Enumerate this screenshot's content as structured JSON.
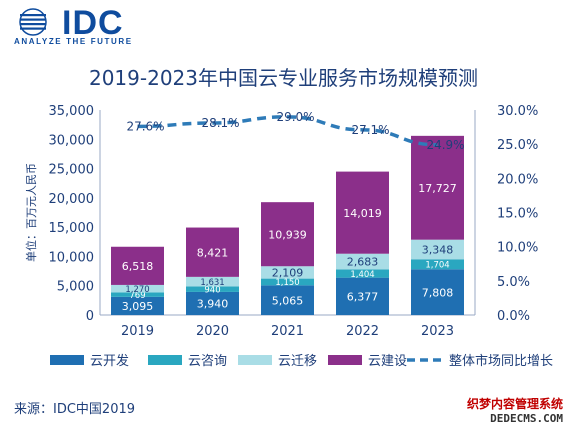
{
  "logo": {
    "brand": "IDC",
    "tagline": "ANALYZE THE FUTURE"
  },
  "source": "来源：IDC中国2019",
  "watermark": {
    "line1": "织梦内容管理系统",
    "line2": "DEDECMS.COM"
  },
  "colors": {
    "dev": "#1f6fb2",
    "consult": "#2aa7c0",
    "migrate": "#a9dde6",
    "build": "#8b2f8a",
    "growth": "#2e7bb8"
  },
  "chart_data": {
    "type": "bar",
    "stacked": true,
    "title": "2019-2023年中国云专业服务市场规模预测",
    "ylabel": "单位：百万元人民币",
    "categories": [
      "2019",
      "2020",
      "2021",
      "2022",
      "2023"
    ],
    "ylim": [
      0,
      35000
    ],
    "yticks": [
      "0",
      "5,000",
      "10,000",
      "15,000",
      "20,000",
      "25,000",
      "30,000",
      "35,000"
    ],
    "y2lim": [
      0,
      30
    ],
    "y2ticks": [
      "0.0%",
      "5.0%",
      "10.0%",
      "15.0%",
      "20.0%",
      "25.0%",
      "30.0%"
    ],
    "series": [
      {
        "name": "云开发",
        "key": "dev",
        "values": [
          3095,
          3940,
          5065,
          6377,
          7808
        ],
        "labels": [
          "3,095",
          "3,940",
          "5,065",
          "6,377",
          "7,808"
        ]
      },
      {
        "name": "云咨询",
        "key": "consult",
        "values": [
          769,
          940,
          1150,
          1404,
          1704
        ],
        "labels": [
          "769",
          "940",
          "1,150",
          "1,404",
          "1,704"
        ]
      },
      {
        "name": "云迁移",
        "key": "migrate",
        "values": [
          1270,
          1631,
          2109,
          2683,
          3348
        ],
        "labels": [
          "1,270",
          "1,631",
          "2,109",
          "2,683",
          "3,348"
        ]
      },
      {
        "name": "云建设",
        "key": "build",
        "values": [
          6518,
          8421,
          10939,
          14019,
          17727
        ],
        "labels": [
          "6,518",
          "8,421",
          "10,939",
          "14,019",
          "17,727"
        ]
      }
    ],
    "line": {
      "name": "整体市场同比增长",
      "axis": "right",
      "values": [
        27.6,
        28.1,
        29.0,
        27.1,
        24.9
      ],
      "labels": [
        "27.6%",
        "28.1%",
        "29.0%",
        "27.1%",
        "24.9%"
      ]
    },
    "grid": false,
    "legend": "bottom"
  }
}
